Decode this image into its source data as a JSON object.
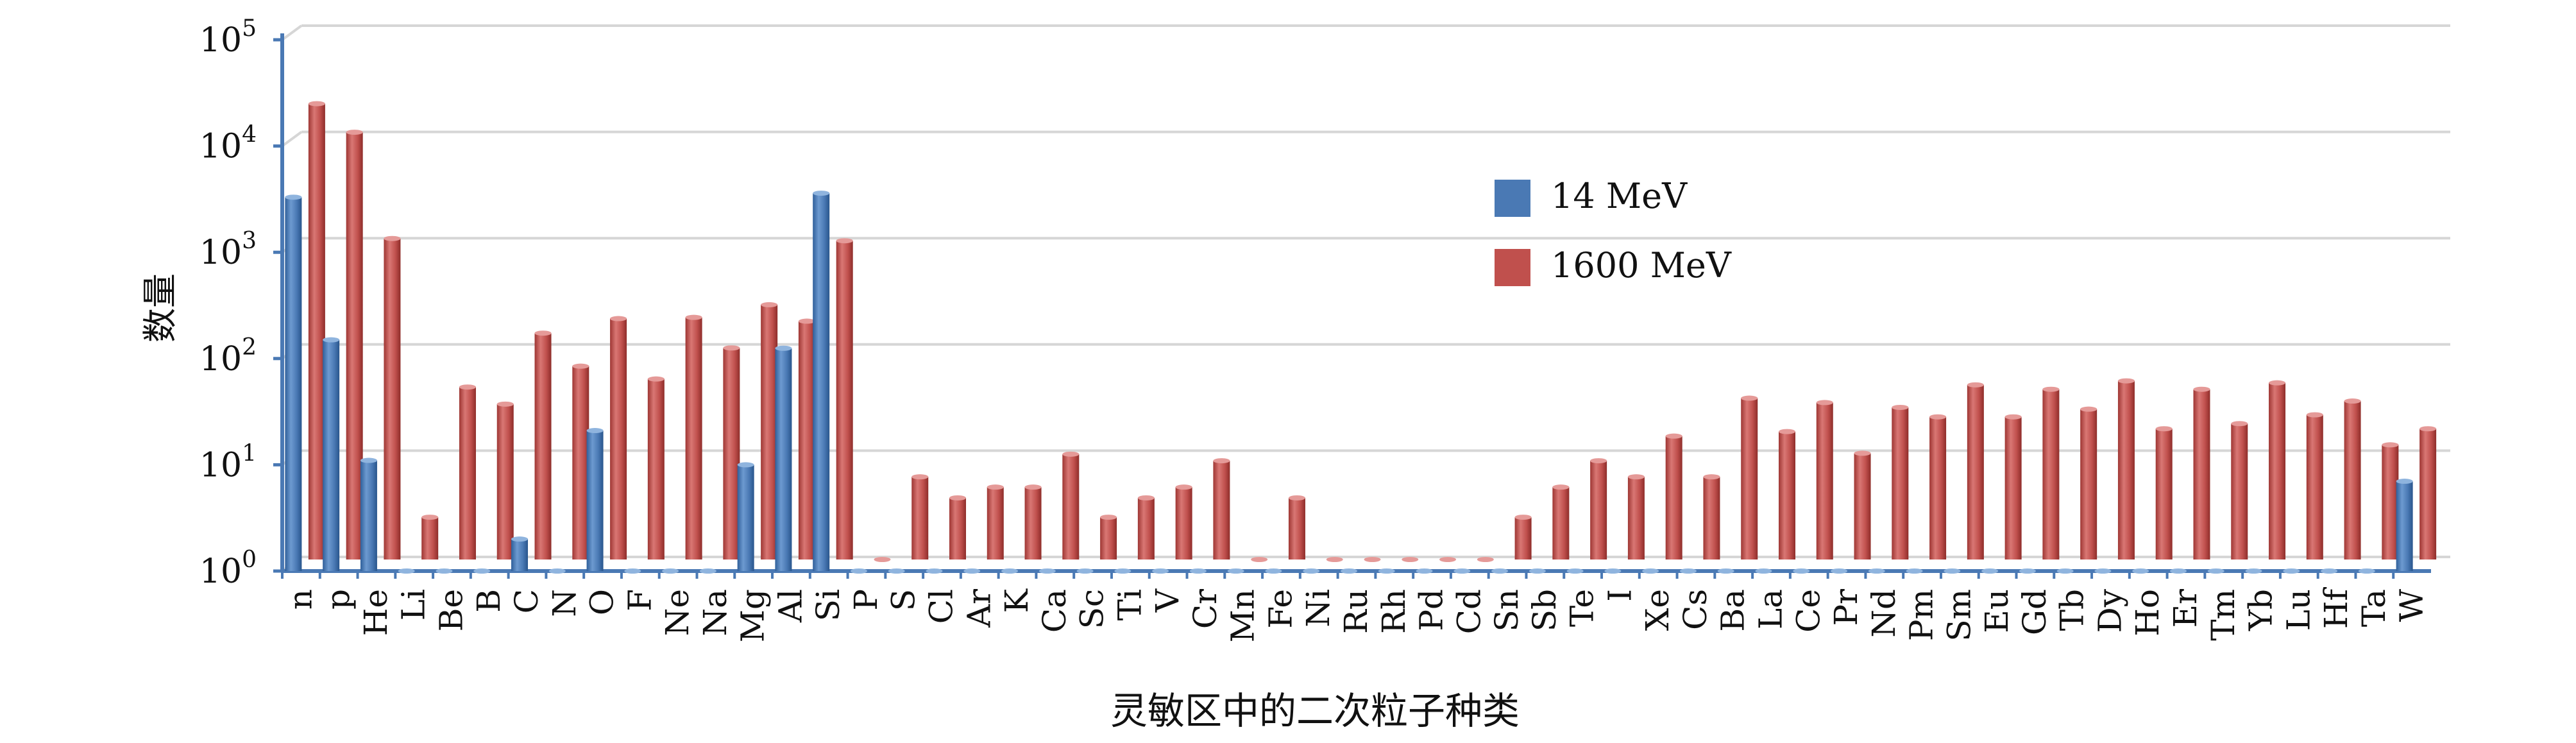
{
  "chart_data": {
    "type": "bar",
    "title": "",
    "xlabel": "灵敏区中的二次粒子种类",
    "ylabel": "数量",
    "yscale": "log",
    "ylim": [
      1,
      100000
    ],
    "ytick_labels": [
      {
        "base": "10",
        "exp": "0"
      },
      {
        "base": "10",
        "exp": "1"
      },
      {
        "base": "10",
        "exp": "2"
      },
      {
        "base": "10",
        "exp": "3"
      },
      {
        "base": "10",
        "exp": "4"
      },
      {
        "base": "10",
        "exp": "5"
      }
    ],
    "grid": true,
    "legend_position": "upper-center",
    "categories": [
      "n",
      "p",
      "He",
      "Li",
      "Be",
      "B",
      "C",
      "N",
      "O",
      "F",
      "Ne",
      "Na",
      "Mg",
      "Al",
      "Si",
      "P",
      "S",
      "Cl",
      "Ar",
      "K",
      "Ca",
      "Sc",
      "Ti",
      "V",
      "Cr",
      "Mn",
      "Fe",
      "Ni",
      "Ru",
      "Rh",
      "Pd",
      "Cd",
      "Sn",
      "Sb",
      "Te",
      "I",
      "Xe",
      "Cs",
      "Ba",
      "La",
      "Ce",
      "Pr",
      "Nd",
      "Pm",
      "Sm",
      "Eu",
      "Gd",
      "Tb",
      "Dy",
      "Ho",
      "Er",
      "Tm",
      "Yb",
      "Lu",
      "Hf",
      "Ta",
      "W"
    ],
    "series": [
      {
        "name": "14 MeV",
        "color": "#4a79b4",
        "values": [
          3300,
          150,
          11,
          1,
          1,
          1,
          2,
          1,
          21,
          1,
          1,
          1,
          10,
          125,
          3600,
          1,
          1,
          1,
          1,
          1,
          1,
          1,
          1,
          1,
          1,
          1,
          1,
          1,
          1,
          1,
          1,
          1,
          1,
          1,
          1,
          1,
          1,
          1,
          1,
          1,
          1,
          1,
          1,
          1,
          1,
          1,
          1,
          1,
          1,
          1,
          1,
          1,
          1,
          1,
          1,
          1,
          7
        ]
      },
      {
        "name": "1600 MeV",
        "color": "#c0504d",
        "values": [
          19500,
          10500,
          1050,
          2.5,
          42,
          29,
          135,
          66,
          185,
          50,
          190,
          98,
          250,
          175,
          1000,
          1,
          6,
          3.8,
          4.8,
          4.8,
          9.8,
          2.5,
          3.8,
          4.8,
          8.5,
          1,
          3.8,
          1,
          1,
          1,
          1,
          1,
          2.5,
          4.8,
          8.5,
          6,
          14.5,
          6,
          33,
          16,
          30,
          10,
          27,
          22,
          44,
          22,
          40,
          26,
          48,
          17,
          40,
          19,
          46,
          23,
          31,
          12,
          17
        ]
      }
    ]
  }
}
